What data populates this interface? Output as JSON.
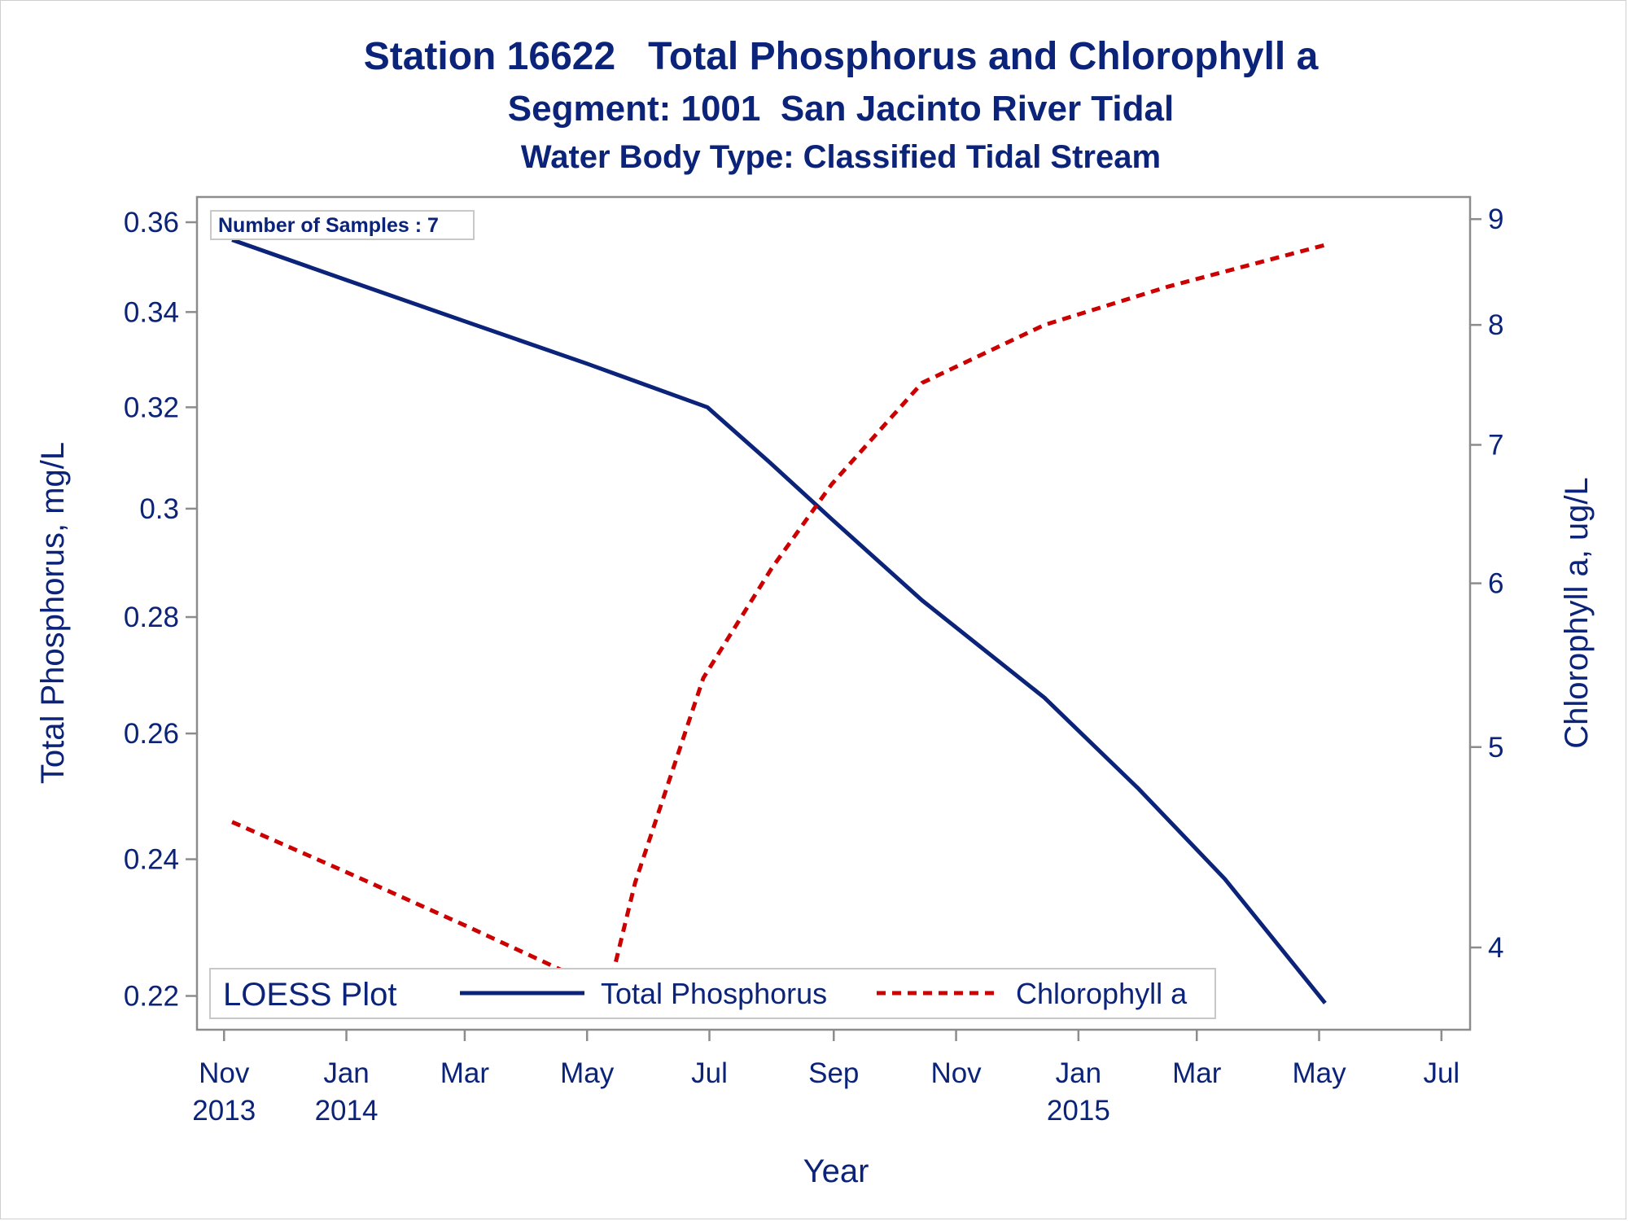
{
  "titles": {
    "line1": "Station 16622   Total Phosphorus and Chlorophyll a",
    "line2": "Segment: 1001  San Jacinto River Tidal",
    "line3": "Water Body Type: Classified Tidal Stream"
  },
  "inset_note": "Number of Samples : 7",
  "legend": {
    "title": "LOESS Plot",
    "items": [
      "Total Phosphorus",
      "Chlorophyll a"
    ]
  },
  "colors": {
    "phosphorus": "#0b2378",
    "chlorophyll": "#cc0000",
    "axis": "#8c8c8c",
    "text": "#0b2378"
  },
  "chart_data": {
    "type": "line",
    "xlabel": "Year",
    "ylabel": "Total Phosphorus, mg/L",
    "y2label": "Chlorophyll a, ug/L",
    "x_ticks": [
      {
        "date": "2013-11-01",
        "label": "Nov",
        "year": "2013"
      },
      {
        "date": "2014-01-01",
        "label": "Jan",
        "year": "2014"
      },
      {
        "date": "2014-03-01",
        "label": "Mar",
        "year": ""
      },
      {
        "date": "2014-05-01",
        "label": "May",
        "year": ""
      },
      {
        "date": "2014-07-01",
        "label": "Jul",
        "year": ""
      },
      {
        "date": "2014-09-01",
        "label": "Sep",
        "year": ""
      },
      {
        "date": "2014-11-01",
        "label": "Nov",
        "year": ""
      },
      {
        "date": "2015-01-01",
        "label": "Jan",
        "year": "2015"
      },
      {
        "date": "2015-03-01",
        "label": "Mar",
        "year": ""
      },
      {
        "date": "2015-05-01",
        "label": "May",
        "year": ""
      },
      {
        "date": "2015-07-01",
        "label": "Jul",
        "year": ""
      }
    ],
    "xlim": [
      "2013-10-25",
      "2015-07-10"
    ],
    "ylim": [
      0.217,
      0.363
    ],
    "yticks": [
      0.22,
      0.24,
      0.26,
      0.28,
      0.3,
      0.32,
      0.34,
      0.36
    ],
    "ytick_labels": [
      "0.22",
      "0.24",
      "0.26",
      "0.28",
      "0.3",
      "0.32",
      "0.34",
      "0.36"
    ],
    "y_scale": "log",
    "y2lim": [
      3.7,
      9.1
    ],
    "y2ticks": [
      4,
      5,
      6,
      7,
      8,
      9
    ],
    "y2_scale": "log",
    "grid": false,
    "legend_position": "bottom-inside",
    "series": [
      {
        "name": "Total Phosphorus",
        "axis": "left",
        "style": "solid",
        "points": [
          [
            "2013-11-05",
            0.356
          ],
          [
            "2014-01-01",
            0.347
          ],
          [
            "2014-03-01",
            0.338
          ],
          [
            "2014-05-01",
            0.329
          ],
          [
            "2014-06-30",
            0.32
          ],
          [
            "2014-07-31",
            0.309
          ],
          [
            "2014-08-31",
            0.298
          ],
          [
            "2014-10-15",
            0.283
          ],
          [
            "2014-12-15",
            0.266
          ],
          [
            "2015-01-31",
            0.251
          ],
          [
            "2015-03-15",
            0.237
          ],
          [
            "2015-05-04",
            0.219
          ]
        ]
      },
      {
        "name": "Chlorophyll a",
        "axis": "right",
        "style": "dashed",
        "points": [
          [
            "2013-11-05",
            4.6
          ],
          [
            "2014-01-01",
            4.35
          ],
          [
            "2014-03-01",
            4.1
          ],
          [
            "2014-05-01",
            3.85
          ],
          [
            "2014-05-10",
            3.75
          ],
          [
            "2014-05-25",
            4.3
          ],
          [
            "2014-06-28",
            5.4
          ],
          [
            "2014-08-01",
            6.1
          ],
          [
            "2014-08-31",
            6.7
          ],
          [
            "2014-10-15",
            7.5
          ],
          [
            "2014-12-15",
            8.0
          ],
          [
            "2015-02-15",
            8.35
          ],
          [
            "2015-05-05",
            8.75
          ]
        ]
      }
    ]
  }
}
